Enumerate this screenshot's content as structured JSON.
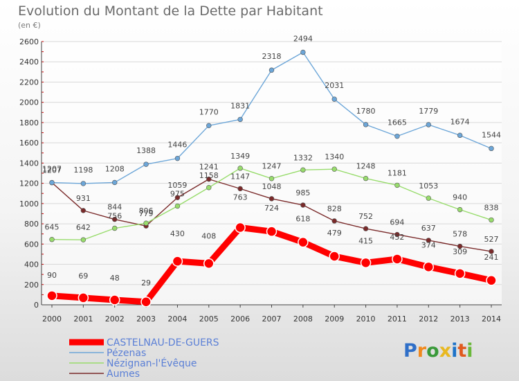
{
  "chart_data": {
    "type": "line",
    "title": "Evolution du Montant de la Dette par Habitant",
    "subtitle": "(en €)",
    "xlabel": "",
    "ylabel": "",
    "x": [
      "2000",
      "2001",
      "2002",
      "2003",
      "2004",
      "2005",
      "2006",
      "2007",
      "2008",
      "2009",
      "2010",
      "2011",
      "2012",
      "2013",
      "2014"
    ],
    "ylim": [
      0,
      2600
    ],
    "yticks": [
      0,
      200,
      400,
      600,
      800,
      1000,
      1200,
      1400,
      1600,
      1800,
      2000,
      2200,
      2400,
      2600
    ],
    "grid": "horizontal",
    "legend_position": "bottom-left",
    "series": [
      {
        "name": "CASTELNAU-DE-GUERS",
        "color": "#ff0000",
        "values": [
          90,
          69,
          48,
          29,
          430,
          408,
          763,
          724,
          618,
          479,
          415,
          452,
          374,
          309,
          241
        ]
      },
      {
        "name": "Pézenas",
        "color": "#6ca6d8",
        "values": [
          1207,
          1198,
          1208,
          1388,
          1446,
          1770,
          1831,
          2318,
          2494,
          2031,
          1780,
          1665,
          1779,
          1674,
          1544
        ]
      },
      {
        "name": "Nézignan-l'Évêque",
        "color": "#98dc6c",
        "values": [
          645,
          642,
          756,
          806,
          975,
          1158,
          1349,
          1247,
          1332,
          1340,
          1248,
          1181,
          1053,
          940,
          838
        ]
      },
      {
        "name": "Aumes",
        "color": "#7a2a2a",
        "values": [
          1207,
          931,
          844,
          779,
          1059,
          1241,
          1147,
          1048,
          985,
          828,
          752,
          694,
          637,
          578,
          527
        ]
      }
    ],
    "label_offsets": [
      [
        "-26",
        "-28",
        "-28",
        "-24",
        "-36",
        "-36",
        "-40",
        "-30",
        "-30",
        "-30",
        "-28",
        "-28",
        "-28",
        "-28",
        "-30"
      ],
      [
        "-16",
        "-16",
        "-16",
        "-16",
        "-16",
        "-16",
        "-16",
        "-16",
        "-16",
        "-16",
        "-16",
        "-16",
        "-16",
        "-16",
        "-16"
      ],
      [
        "-14",
        "-14",
        "-14",
        "-14",
        "-14",
        "-14",
        "-14",
        "-14",
        "-14",
        "-14",
        "-14",
        "-14",
        "-14",
        "-14",
        "-14"
      ],
      [
        "-14",
        "-14",
        "-14",
        "-14",
        "-14",
        "-14",
        "-14",
        "-14",
        "-14",
        "-14",
        "-14",
        "-14",
        "-14",
        "-14",
        "-14"
      ]
    ]
  },
  "brand": {
    "letters": [
      "P",
      "r",
      "o",
      "x",
      "i",
      "t",
      "i"
    ],
    "colors": [
      "#2f6fc8",
      "#f0891e",
      "#3a9a3a",
      "#e8b820",
      "#1e73c8",
      "#e05a1e",
      "#6ab83a"
    ]
  }
}
